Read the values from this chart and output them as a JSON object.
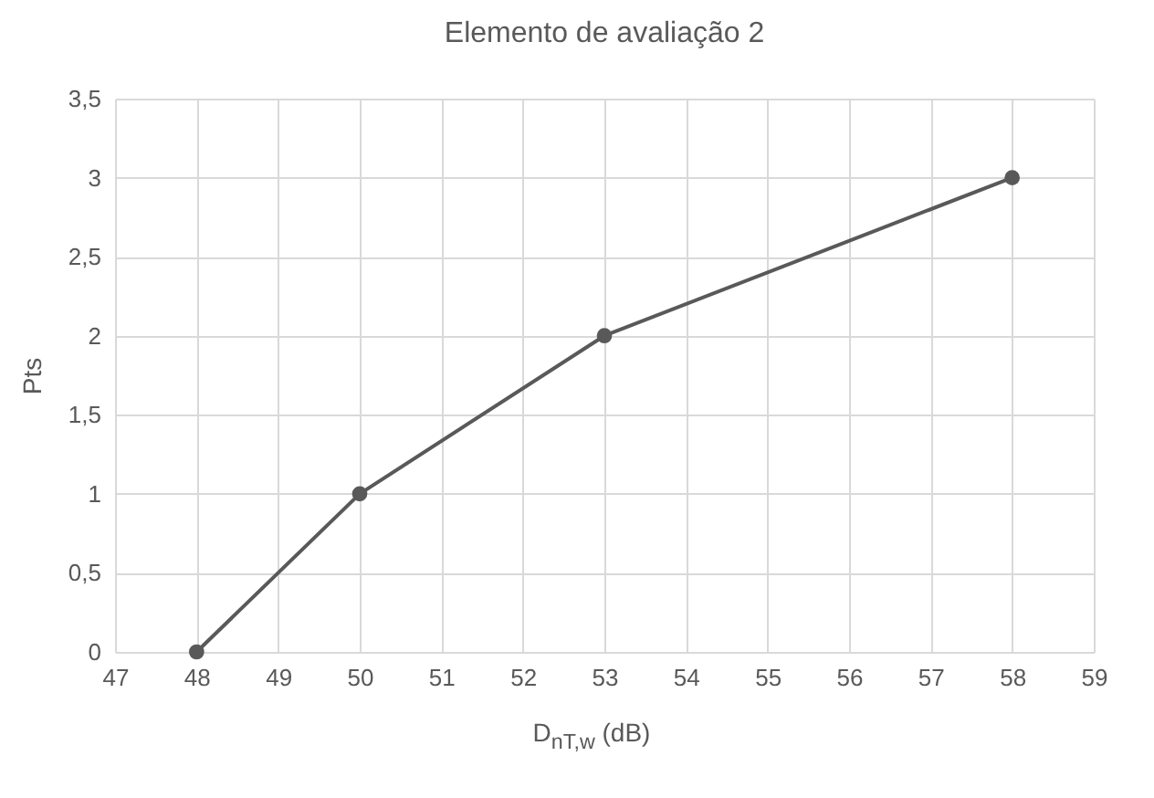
{
  "chart_data": {
    "type": "line",
    "title": "Elemento de avaliação 2",
    "xlabel": "D$_{nT,w}$ (dB)",
    "ylabel": "Pts",
    "x": [
      48,
      50,
      53,
      58
    ],
    "series": [
      {
        "color": "#595959",
        "values": [
          0,
          1,
          2,
          3
        ]
      }
    ],
    "xlim": [
      47,
      59
    ],
    "xticks": [
      47,
      48,
      49,
      50,
      51,
      52,
      53,
      54,
      55,
      56,
      57,
      58,
      59
    ],
    "ylim": [
      0,
      3.5
    ],
    "yticks": [
      0,
      {
        "value": 0.5,
        "label": "0,5"
      },
      1,
      {
        "value": 1.5,
        "label": "1,5"
      },
      2,
      {
        "value": 2.5,
        "label": "2,5"
      },
      3,
      {
        "value": 3.5,
        "label": "3,5"
      }
    ],
    "grid": true,
    "marker": "circle",
    "line_style": "solid"
  }
}
